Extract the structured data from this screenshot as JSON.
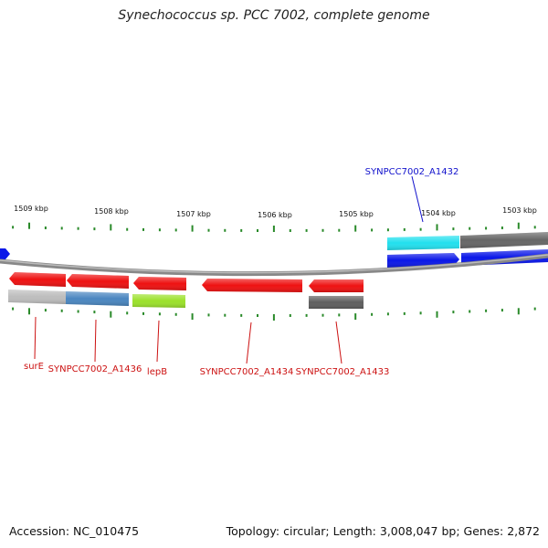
{
  "title": "Synechococcus sp. PCC 7002, complete genome",
  "footer": {
    "accession": "Accession: NC_010475",
    "topology": "Topology: circular; Length: 3,008,047 bp; Genes: 2,872"
  },
  "colors": {
    "tick": "#2a8a2a",
    "gene_red": "#ee1111",
    "gene_blue": "#0a17e8",
    "cyan": "#22e0ee",
    "dark_gray": "#5e5e5e",
    "light_gray": "#bdbdbd",
    "steel_blue": "#4a86c0",
    "lime": "#9be12a",
    "label_red": "#cc1111",
    "label_blue": "#1111cc"
  },
  "scale_labels": [
    "1509 kbp",
    "1508 kbp",
    "1507 kbp",
    "1506 kbp",
    "1505 kbp",
    "1504 kbp",
    "1503 kbp"
  ],
  "gene_labels": {
    "A1432": "SYNPCC7002_A1432",
    "surE": "surE",
    "A1436": "SYNPCC7002_A1436",
    "lepB": "lepB",
    "A1434": "SYNPCC7002_A1434",
    "A1433": "SYNPCC7002_A1433"
  }
}
